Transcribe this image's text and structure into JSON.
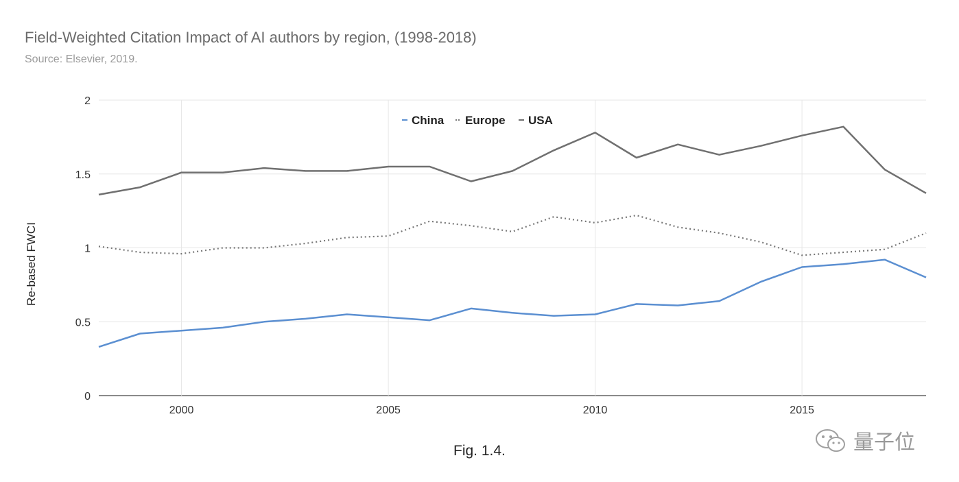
{
  "title": "Field-Weighted Citation Impact of AI authors by region, (1998-2018)",
  "subtitle": "Source: Elsevier, 2019.",
  "caption": "Fig. 1.4.",
  "watermark": "量子位",
  "chart_data": {
    "type": "line",
    "title": "Field-Weighted Citation Impact of AI authors by region, (1998-2018)",
    "subtitle": "Source: Elsevier, 2019.",
    "xlabel": "",
    "ylabel": "Re-based FWCI",
    "xlim": [
      1998,
      2018
    ],
    "ylim": [
      0,
      2
    ],
    "x_ticks": [
      "2000",
      "2005",
      "2010",
      "2015"
    ],
    "y_ticks": [
      "0",
      "0.5",
      "1",
      "1.5",
      "2"
    ],
    "grid": true,
    "legend_position": "top-center",
    "x": [
      1998,
      1999,
      2000,
      2001,
      2002,
      2003,
      2004,
      2005,
      2006,
      2007,
      2008,
      2009,
      2010,
      2011,
      2012,
      2013,
      2014,
      2015,
      2016,
      2017,
      2018
    ],
    "series": [
      {
        "name": "China",
        "style": "solid",
        "color": "#5b8fd1",
        "values": [
          0.33,
          0.42,
          0.44,
          0.46,
          0.5,
          0.52,
          0.55,
          0.53,
          0.51,
          0.59,
          0.56,
          0.54,
          0.55,
          0.62,
          0.61,
          0.64,
          0.77,
          0.87,
          0.89,
          0.92,
          0.8
        ]
      },
      {
        "name": "Europe",
        "style": "dotted",
        "color": "#777777",
        "values": [
          1.01,
          0.97,
          0.96,
          1.0,
          1.0,
          1.03,
          1.07,
          1.08,
          1.18,
          1.15,
          1.11,
          1.21,
          1.17,
          1.22,
          1.14,
          1.1,
          1.04,
          0.95,
          0.97,
          0.99,
          1.1
        ]
      },
      {
        "name": "USA",
        "style": "solid",
        "color": "#707070",
        "values": [
          1.36,
          1.41,
          1.51,
          1.51,
          1.54,
          1.52,
          1.52,
          1.55,
          1.55,
          1.45,
          1.52,
          1.66,
          1.78,
          1.61,
          1.7,
          1.63,
          1.69,
          1.76,
          1.82,
          1.53,
          1.37
        ]
      }
    ]
  }
}
